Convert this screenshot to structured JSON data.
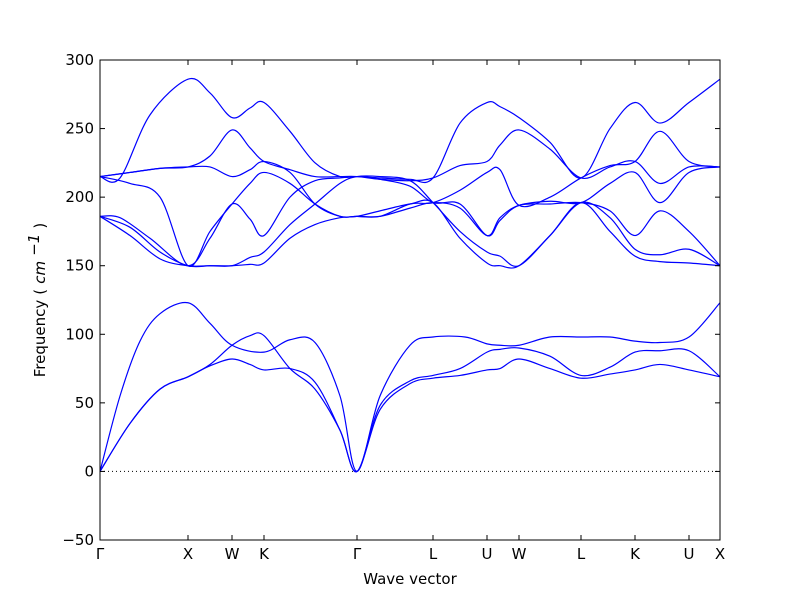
{
  "chart_data": {
    "type": "line",
    "xlabel": "Wave vector",
    "ylabel": "Frequency",
    "ylabel_unit": "cm",
    "ylabel_unit_exponent": "−1",
    "ylim": [
      -50,
      300
    ],
    "yticks": [
      -50,
      0,
      50,
      100,
      150,
      200,
      250,
      300
    ],
    "ytick_labels": [
      "−50",
      "0",
      "50",
      "100",
      "150",
      "200",
      "250",
      "300"
    ],
    "x_range": [
      0,
      620
    ],
    "high_symmetry_points": [
      {
        "label": "Γ",
        "x": 0
      },
      {
        "label": "X",
        "x": 88
      },
      {
        "label": "W",
        "x": 132
      },
      {
        "label": "K",
        "x": 164
      },
      {
        "label": "Γ",
        "x": 257
      },
      {
        "label": "L",
        "x": 333
      },
      {
        "label": "U",
        "x": 387
      },
      {
        "label": "W",
        "x": 419
      },
      {
        "label": "L",
        "x": 481
      },
      {
        "label": "K",
        "x": 535
      },
      {
        "label": "U",
        "x": 589
      },
      {
        "label": "X",
        "x": 620
      }
    ],
    "zero_line": true,
    "grid": false,
    "line_color": "#0000ff",
    "series": [
      {
        "values": [
          [
            0,
            0
          ],
          [
            20,
            55
          ],
          [
            40,
            95
          ],
          [
            60,
            115
          ],
          [
            88,
            123
          ],
          [
            110,
            108
          ],
          [
            132,
            92
          ],
          [
            164,
            87
          ],
          [
            190,
            96
          ],
          [
            215,
            94
          ],
          [
            240,
            55
          ],
          [
            257,
            0
          ],
          [
            280,
            55
          ],
          [
            310,
            92
          ],
          [
            333,
            98
          ],
          [
            365,
            98
          ],
          [
            387,
            93
          ],
          [
            400,
            92
          ],
          [
            419,
            92
          ],
          [
            450,
            98
          ],
          [
            481,
            98
          ],
          [
            510,
            98
          ],
          [
            535,
            95
          ],
          [
            560,
            94
          ],
          [
            589,
            98
          ],
          [
            620,
            123
          ]
        ]
      },
      {
        "values": [
          [
            0,
            0
          ],
          [
            30,
            35
          ],
          [
            60,
            60
          ],
          [
            88,
            69
          ],
          [
            110,
            78
          ],
          [
            132,
            92
          ],
          [
            150,
            99
          ],
          [
            164,
            99
          ],
          [
            190,
            75
          ],
          [
            215,
            60
          ],
          [
            240,
            30
          ],
          [
            257,
            0
          ],
          [
            280,
            48
          ],
          [
            310,
            66
          ],
          [
            333,
            70
          ],
          [
            360,
            75
          ],
          [
            387,
            87
          ],
          [
            400,
            89
          ],
          [
            419,
            90
          ],
          [
            450,
            84
          ],
          [
            481,
            70
          ],
          [
            510,
            76
          ],
          [
            535,
            87
          ],
          [
            560,
            88
          ],
          [
            589,
            88
          ],
          [
            620,
            69
          ]
        ]
      },
      {
        "values": [
          [
            0,
            0
          ],
          [
            30,
            35
          ],
          [
            60,
            60
          ],
          [
            88,
            69
          ],
          [
            110,
            77
          ],
          [
            132,
            82
          ],
          [
            150,
            78
          ],
          [
            164,
            74
          ],
          [
            190,
            75
          ],
          [
            215,
            65
          ],
          [
            240,
            30
          ],
          [
            257,
            0
          ],
          [
            280,
            45
          ],
          [
            310,
            64
          ],
          [
            333,
            68
          ],
          [
            360,
            70
          ],
          [
            387,
            74
          ],
          [
            400,
            75
          ],
          [
            419,
            82
          ],
          [
            450,
            75
          ],
          [
            481,
            68
          ],
          [
            510,
            71
          ],
          [
            535,
            74
          ],
          [
            560,
            78
          ],
          [
            589,
            74
          ],
          [
            620,
            69
          ]
        ]
      },
      {
        "values": [
          [
            0,
            186
          ],
          [
            30,
            172
          ],
          [
            60,
            155
          ],
          [
            88,
            150
          ],
          [
            110,
            150
          ],
          [
            132,
            150
          ],
          [
            150,
            151
          ],
          [
            164,
            152
          ],
          [
            190,
            170
          ],
          [
            215,
            180
          ],
          [
            240,
            185
          ],
          [
            257,
            186
          ],
          [
            280,
            190
          ],
          [
            310,
            195
          ],
          [
            333,
            196
          ],
          [
            360,
            170
          ],
          [
            387,
            152
          ],
          [
            400,
            150
          ],
          [
            419,
            150
          ],
          [
            450,
            172
          ],
          [
            481,
            196
          ],
          [
            510,
            175
          ],
          [
            535,
            157
          ],
          [
            560,
            153
          ],
          [
            589,
            152
          ],
          [
            620,
            150
          ]
        ]
      },
      {
        "values": [
          [
            0,
            186
          ],
          [
            30,
            178
          ],
          [
            60,
            160
          ],
          [
            88,
            150
          ],
          [
            110,
            150
          ],
          [
            132,
            150
          ],
          [
            150,
            156
          ],
          [
            164,
            160
          ],
          [
            190,
            180
          ],
          [
            215,
            195
          ],
          [
            240,
            210
          ],
          [
            257,
            215
          ],
          [
            280,
            215
          ],
          [
            310,
            212
          ],
          [
            333,
            196
          ],
          [
            360,
            175
          ],
          [
            387,
            160
          ],
          [
            400,
            157
          ],
          [
            419,
            150
          ],
          [
            450,
            172
          ],
          [
            481,
            196
          ],
          [
            510,
            185
          ],
          [
            535,
            162
          ],
          [
            560,
            158
          ],
          [
            589,
            162
          ],
          [
            620,
            150
          ]
        ]
      },
      {
        "values": [
          [
            0,
            186
          ],
          [
            20,
            185
          ],
          [
            50,
            170
          ],
          [
            88,
            150
          ],
          [
            110,
            170
          ],
          [
            132,
            195
          ],
          [
            150,
            184
          ],
          [
            164,
            172
          ],
          [
            190,
            200
          ],
          [
            215,
            212
          ],
          [
            240,
            214
          ],
          [
            257,
            215
          ],
          [
            280,
            213
          ],
          [
            310,
            208
          ],
          [
            333,
            196
          ],
          [
            360,
            195
          ],
          [
            387,
            172
          ],
          [
            400,
            183
          ],
          [
            419,
            194
          ],
          [
            450,
            195
          ],
          [
            481,
            196
          ],
          [
            510,
            190
          ],
          [
            535,
            172
          ],
          [
            560,
            190
          ],
          [
            589,
            175
          ],
          [
            620,
            150
          ]
        ]
      },
      {
        "values": [
          [
            0,
            215
          ],
          [
            30,
            210
          ],
          [
            60,
            200
          ],
          [
            88,
            150
          ],
          [
            110,
            175
          ],
          [
            132,
            195
          ],
          [
            150,
            210
          ],
          [
            164,
            218
          ],
          [
            190,
            210
          ],
          [
            215,
            195
          ],
          [
            240,
            186
          ],
          [
            257,
            186
          ],
          [
            280,
            186
          ],
          [
            310,
            192
          ],
          [
            333,
            196
          ],
          [
            360,
            192
          ],
          [
            387,
            172
          ],
          [
            400,
            185
          ],
          [
            419,
            194
          ],
          [
            450,
            197
          ],
          [
            481,
            196
          ],
          [
            510,
            210
          ],
          [
            535,
            218
          ],
          [
            560,
            196
          ],
          [
            589,
            218
          ],
          [
            620,
            222
          ]
        ]
      },
      {
        "values": [
          [
            0,
            215
          ],
          [
            30,
            218
          ],
          [
            60,
            221
          ],
          [
            88,
            222
          ],
          [
            110,
            222
          ],
          [
            132,
            215
          ],
          [
            150,
            220
          ],
          [
            164,
            226
          ],
          [
            190,
            218
          ],
          [
            215,
            195
          ],
          [
            240,
            186
          ],
          [
            257,
            186
          ],
          [
            280,
            186
          ],
          [
            310,
            195
          ],
          [
            333,
            196
          ],
          [
            360,
            205
          ],
          [
            387,
            218
          ],
          [
            400,
            220
          ],
          [
            419,
            194
          ],
          [
            450,
            200
          ],
          [
            481,
            214
          ],
          [
            510,
            223
          ],
          [
            535,
            226
          ],
          [
            560,
            248
          ],
          [
            589,
            226
          ],
          [
            620,
            222
          ]
        ]
      },
      {
        "values": [
          [
            0,
            215
          ],
          [
            30,
            218
          ],
          [
            60,
            221
          ],
          [
            88,
            222
          ],
          [
            110,
            230
          ],
          [
            132,
            249
          ],
          [
            150,
            236
          ],
          [
            164,
            226
          ],
          [
            190,
            220
          ],
          [
            215,
            215
          ],
          [
            240,
            215
          ],
          [
            257,
            215
          ],
          [
            280,
            213
          ],
          [
            310,
            212
          ],
          [
            333,
            214
          ],
          [
            360,
            223
          ],
          [
            387,
            226
          ],
          [
            400,
            238
          ],
          [
            419,
            249
          ],
          [
            450,
            235
          ],
          [
            481,
            214
          ],
          [
            510,
            222
          ],
          [
            535,
            226
          ],
          [
            560,
            210
          ],
          [
            589,
            222
          ],
          [
            620,
            222
          ]
        ]
      },
      {
        "values": [
          [
            0,
            215
          ],
          [
            20,
            214
          ],
          [
            50,
            260
          ],
          [
            88,
            286
          ],
          [
            110,
            276
          ],
          [
            132,
            258
          ],
          [
            150,
            265
          ],
          [
            164,
            269
          ],
          [
            190,
            248
          ],
          [
            215,
            225
          ],
          [
            240,
            215
          ],
          [
            257,
            215
          ],
          [
            280,
            214
          ],
          [
            310,
            213
          ],
          [
            333,
            214
          ],
          [
            360,
            254
          ],
          [
            387,
            269
          ],
          [
            400,
            266
          ],
          [
            419,
            258
          ],
          [
            450,
            240
          ],
          [
            481,
            214
          ],
          [
            510,
            250
          ],
          [
            535,
            269
          ],
          [
            560,
            254
          ],
          [
            589,
            269
          ],
          [
            620,
            286
          ]
        ]
      }
    ]
  }
}
